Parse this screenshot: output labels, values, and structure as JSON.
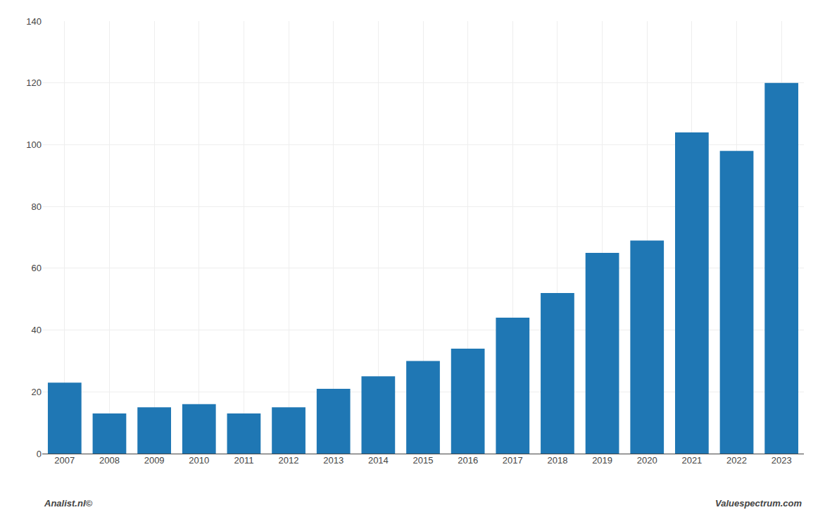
{
  "chart_data": {
    "type": "bar",
    "categories": [
      "2007",
      "2008",
      "2009",
      "2010",
      "2011",
      "2012",
      "2013",
      "2014",
      "2015",
      "2016",
      "2017",
      "2018",
      "2019",
      "2020",
      "2021",
      "2022",
      "2023"
    ],
    "values": [
      23,
      13,
      15,
      16,
      13,
      15,
      21,
      25,
      30,
      34,
      44,
      52,
      65,
      69,
      104,
      98,
      120
    ],
    "ylim": [
      0,
      140
    ],
    "yticks": [
      0,
      20,
      40,
      60,
      80,
      100,
      120,
      140
    ],
    "grid": true,
    "annotations": [
      "Analist.nl©",
      "Valuespectrum.com"
    ]
  }
}
